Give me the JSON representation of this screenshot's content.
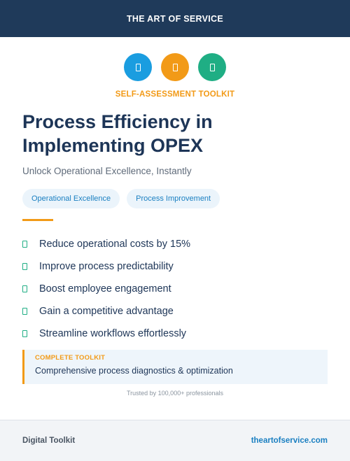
{
  "header": {
    "brand": "THE ART OF SERVICE"
  },
  "icons": [
    {
      "name": "document-icon",
      "color": "#1a9de0"
    },
    {
      "name": "document-icon",
      "color": "#f29a17"
    },
    {
      "name": "document-icon",
      "color": "#1fae84"
    }
  ],
  "kicker": "SELF-ASSESSMENT TOOLKIT",
  "title": "Process Efficiency in Implementing OPEX",
  "subtitle": "Unlock Operational Excellence, Instantly",
  "tags": [
    "Operational Excellence",
    "Process Improvement"
  ],
  "benefits": [
    "Reduce operational costs by 15%",
    "Improve process predictability",
    "Boost employee engagement",
    "Gain a competitive advantage",
    "Streamline workflows effortlessly"
  ],
  "callout": {
    "label": "COMPLETE TOOLKIT",
    "text": "Comprehensive process diagnostics & optimization"
  },
  "trust": "Trusted by 100,000+ professionals",
  "footer": {
    "left": "Digital Toolkit",
    "right": "theartofservice.com"
  },
  "colors": {
    "navy": "#1f3a5a",
    "accent_orange": "#f29a17",
    "accent_green": "#1fae84",
    "accent_blue": "#1a7fc1",
    "tag_text": "#1a7fc1"
  }
}
